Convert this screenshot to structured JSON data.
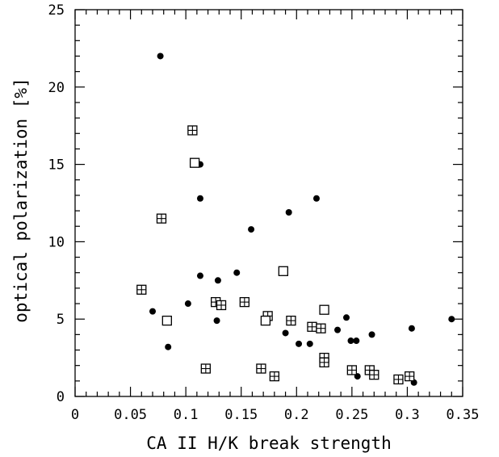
{
  "chart_data": {
    "type": "scatter",
    "xlabel": "CA II H/K break strength",
    "ylabel": "optical polarization [%]",
    "xlim": [
      0,
      0.35
    ],
    "ylim": [
      0,
      25
    ],
    "x_ticks": [
      "0",
      "0.05",
      "0.1",
      "0.15",
      "0.2",
      "0.25",
      "0.3",
      "0.35"
    ],
    "y_ticks": [
      "0",
      "5",
      "10",
      "15",
      "20",
      "25"
    ],
    "grid": false,
    "legend": "none",
    "series": [
      {
        "marker": "filled-circle",
        "color": "#000000",
        "points": [
          [
            0.077,
            22.0
          ],
          [
            0.113,
            15.0
          ],
          [
            0.113,
            12.8
          ],
          [
            0.218,
            12.8
          ],
          [
            0.193,
            11.9
          ],
          [
            0.159,
            10.8
          ],
          [
            0.113,
            7.8
          ],
          [
            0.146,
            8.0
          ],
          [
            0.129,
            7.5
          ],
          [
            0.07,
            5.5
          ],
          [
            0.102,
            6.0
          ],
          [
            0.128,
            4.9
          ],
          [
            0.084,
            3.2
          ],
          [
            0.19,
            4.1
          ],
          [
            0.202,
            3.4
          ],
          [
            0.212,
            3.4
          ],
          [
            0.237,
            4.3
          ],
          [
            0.245,
            5.1
          ],
          [
            0.249,
            3.6
          ],
          [
            0.254,
            3.6
          ],
          [
            0.255,
            1.3
          ],
          [
            0.268,
            4.0
          ],
          [
            0.304,
            4.4
          ],
          [
            0.306,
            0.9
          ],
          [
            0.34,
            5.0
          ]
        ]
      },
      {
        "marker": "boxed-plus",
        "color": "#000000",
        "points": [
          [
            0.106,
            17.2
          ],
          [
            0.078,
            11.5
          ],
          [
            0.06,
            6.9
          ],
          [
            0.127,
            6.1
          ],
          [
            0.132,
            5.9
          ],
          [
            0.153,
            6.1
          ],
          [
            0.174,
            5.2
          ],
          [
            0.195,
            4.9
          ],
          [
            0.214,
            4.5
          ],
          [
            0.222,
            4.4
          ],
          [
            0.225,
            2.5
          ],
          [
            0.225,
            2.2
          ],
          [
            0.118,
            1.8
          ],
          [
            0.168,
            1.8
          ],
          [
            0.18,
            1.3
          ],
          [
            0.25,
            1.7
          ],
          [
            0.266,
            1.7
          ],
          [
            0.27,
            1.4
          ],
          [
            0.292,
            1.1
          ],
          [
            0.302,
            1.3
          ]
        ]
      },
      {
        "marker": "open-square",
        "color": "#000000",
        "points": [
          [
            0.108,
            15.1
          ],
          [
            0.188,
            8.1
          ],
          [
            0.083,
            4.9
          ],
          [
            0.172,
            4.9
          ],
          [
            0.225,
            5.6
          ]
        ]
      }
    ]
  }
}
